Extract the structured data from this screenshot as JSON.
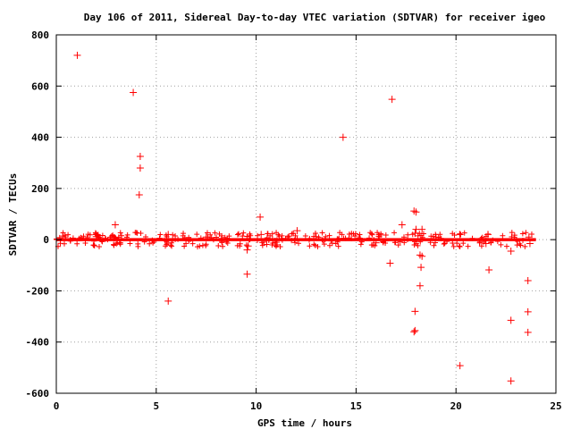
{
  "chart_data": {
    "type": "scatter",
    "title": "Day 106 of 2011, Sidereal Day-to-day VTEC variation (SDTVAR) for receiver igeo",
    "xlabel": "GPS time / hours",
    "ylabel": "SDTVAR / TECUs",
    "xlim": [
      0,
      25
    ],
    "ylim": [
      -600,
      800
    ],
    "xticks": [
      0,
      5,
      10,
      15,
      20,
      25
    ],
    "yticks": [
      -600,
      -400,
      -200,
      0,
      200,
      400,
      600,
      800
    ],
    "grid": true,
    "marker": "+",
    "color": "#ff0000",
    "band": {
      "x_start": 0.0,
      "x_end": 24.0,
      "y_center": 0,
      "y_half_width": 6
    },
    "outliers": [
      [
        1.05,
        720
      ],
      [
        3.85,
        575
      ],
      [
        4.2,
        325
      ],
      [
        4.2,
        280
      ],
      [
        4.15,
        175
      ],
      [
        2.95,
        58
      ],
      [
        5.6,
        20
      ],
      [
        5.6,
        -240
      ],
      [
        9.55,
        -135
      ],
      [
        9.55,
        -40
      ],
      [
        9.6,
        -25
      ],
      [
        10.2,
        88
      ],
      [
        10.25,
        20
      ],
      [
        12.05,
        35
      ],
      [
        14.35,
        400
      ],
      [
        16.8,
        548
      ],
      [
        16.7,
        -92
      ],
      [
        17.3,
        58
      ],
      [
        17.9,
        112
      ],
      [
        18.0,
        108
      ],
      [
        18.0,
        40
      ],
      [
        17.95,
        25
      ],
      [
        18.1,
        15
      ],
      [
        18.3,
        40
      ],
      [
        18.2,
        -60
      ],
      [
        18.3,
        -65
      ],
      [
        18.25,
        -108
      ],
      [
        18.2,
        -180
      ],
      [
        17.95,
        -280
      ],
      [
        17.95,
        -355
      ],
      [
        17.9,
        -360
      ],
      [
        20.2,
        20
      ],
      [
        20.2,
        -492
      ],
      [
        21.6,
        20
      ],
      [
        21.65,
        -118
      ],
      [
        22.75,
        -45
      ],
      [
        22.75,
        -315
      ],
      [
        22.75,
        -552
      ],
      [
        23.6,
        -160
      ],
      [
        23.6,
        -282
      ],
      [
        23.6,
        -362
      ],
      [
        23.7,
        -15
      ],
      [
        23.65,
        10
      ],
      [
        11.0,
        -10
      ],
      [
        13.0,
        12
      ],
      [
        16.0,
        -12
      ],
      [
        19.0,
        10
      ],
      [
        21.5,
        -15
      ],
      [
        2.0,
        12
      ],
      [
        7.5,
        10
      ]
    ]
  }
}
